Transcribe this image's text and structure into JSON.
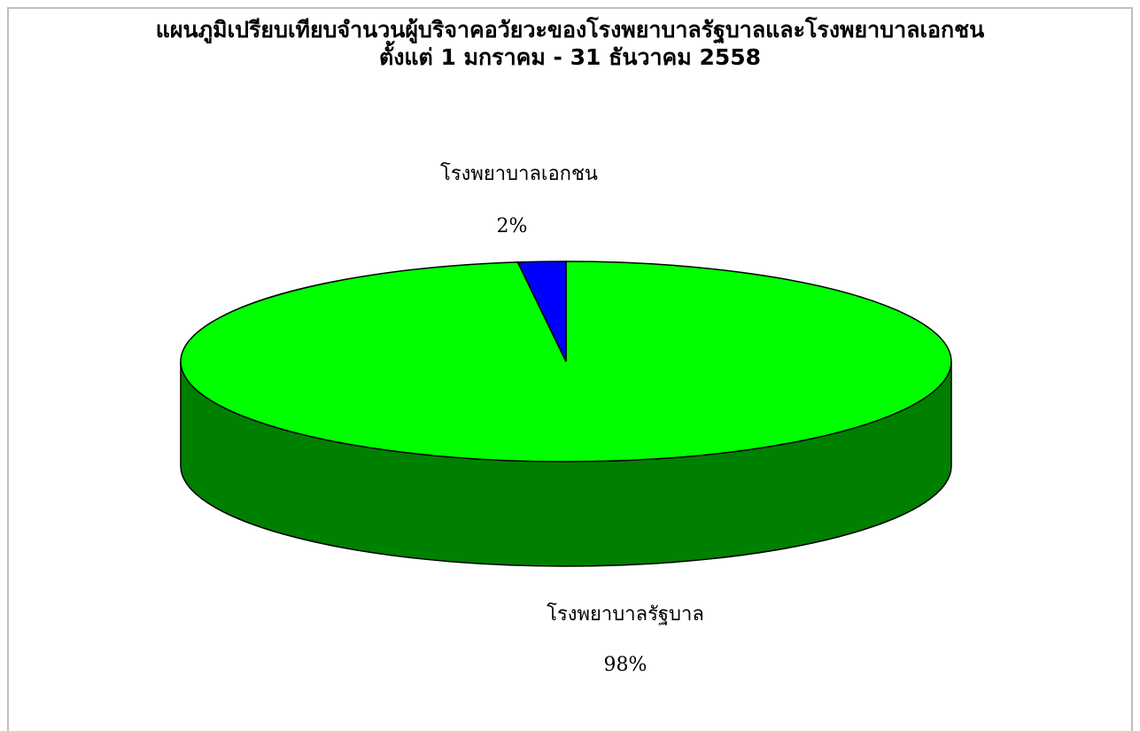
{
  "chart_data": {
    "type": "pie",
    "title": "แผนภูมิเปรียบเทียบจำนวนผู้บริจาคอวัยวะของโรงพยาบาลรัฐบาลและโรงพยาบาลเอกชน",
    "subtitle": "ตั้งแต่ 1 มกราคม - 31 ธันวาคม 2558",
    "three_d": true,
    "slices": [
      {
        "label": "โรงพยาบาลรัฐบาล",
        "value": 98,
        "value_label": "98%",
        "color": "#00ff00",
        "side_color": "#008000"
      },
      {
        "label": "โรงพยาบาลเอกชน",
        "value": 2,
        "value_label": "2%",
        "color": "#0000ff",
        "side_color": "#000080"
      }
    ],
    "legend": "none"
  }
}
